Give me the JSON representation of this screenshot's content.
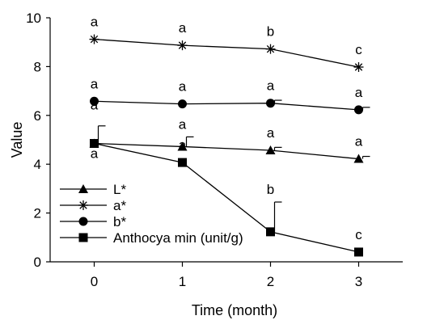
{
  "chart_data": {
    "type": "line",
    "title": "",
    "xlabel": "Time (month)",
    "ylabel": "Value",
    "x": [
      0,
      1,
      2,
      3
    ],
    "x_ticks": [
      "0",
      "1",
      "2",
      "3"
    ],
    "xlim": [
      -0.5,
      3.5
    ],
    "ylim": [
      0,
      10
    ],
    "y_ticks": [
      "0",
      "2",
      "4",
      "6",
      "8",
      "10"
    ],
    "grid": false,
    "legend_position": "bottom-left",
    "series": [
      {
        "name": "L*",
        "marker": "triangle",
        "values": [
          4.85,
          4.72,
          4.57,
          4.22
        ],
        "errors": [
          0,
          0.4,
          0.12,
          0.1
        ],
        "labels": [
          "a",
          "a",
          "a",
          "a"
        ]
      },
      {
        "name": "a*",
        "marker": "asterisk",
        "values": [
          9.12,
          8.87,
          8.72,
          7.98
        ],
        "errors": [
          0,
          0,
          0,
          0
        ],
        "labels": [
          "a",
          "a",
          "b",
          "c"
        ]
      },
      {
        "name": "b*",
        "marker": "circle",
        "values": [
          6.58,
          6.47,
          6.5,
          6.23
        ],
        "errors": [
          0,
          0,
          0.12,
          0.1
        ],
        "labels": [
          "a",
          "a",
          "a",
          "a"
        ]
      },
      {
        "name": "Anthocya min (unit/g)",
        "marker": "square",
        "values": [
          4.85,
          4.07,
          1.23,
          0.4
        ],
        "errors": [
          0.72,
          0,
          1.22,
          0
        ],
        "labels": [
          "a",
          "a",
          "b",
          "c"
        ]
      }
    ]
  }
}
